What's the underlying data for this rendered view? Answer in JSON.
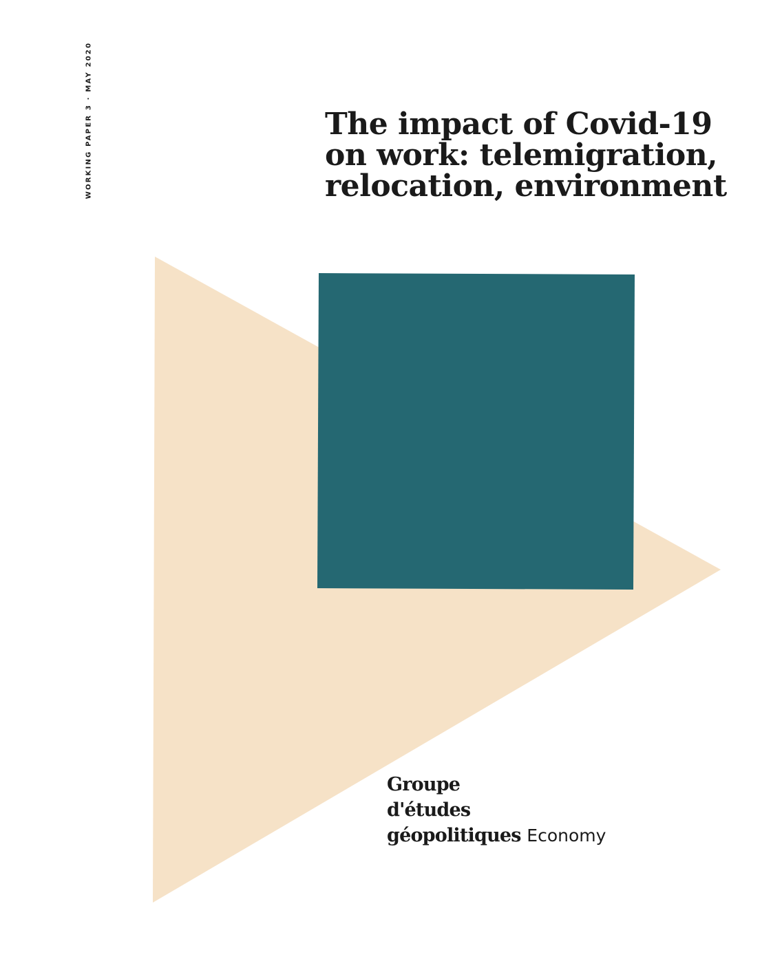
{
  "side_label": "WORKING PAPER 3 · MAY 2020",
  "title": {
    "lines": [
      "The impact of Covid-19",
      "on work: telemigration,",
      "relocation, environment"
    ]
  },
  "logo": {
    "line1": "Groupe",
    "line2": "d'études",
    "line3": "géopolitiques",
    "section": "Economy"
  },
  "colors": {
    "triangle": "#f6e2c7",
    "square": "#256872",
    "text": "#1a1a1a"
  }
}
